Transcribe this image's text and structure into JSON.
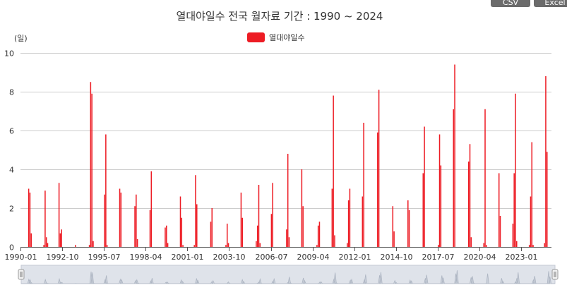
{
  "toolbar": {
    "csv_label": "CSV",
    "excel_label": "Excel"
  },
  "colors": {
    "series": "#ed1c24",
    "grid": "#cccccc",
    "axis": "#555555",
    "navigator_fill": "#dfe3ea"
  },
  "chart_data": {
    "type": "bar",
    "title": "열대야일수 전국 월자료 기간 : 1990 ~ 2024",
    "yunit": "(일)",
    "ylim": [
      0,
      10
    ],
    "yticks": [
      0,
      2,
      4,
      6,
      8,
      10
    ],
    "xlim": [
      "1990-01",
      "2024-12"
    ],
    "xticks": [
      "1990-01",
      "1992-10",
      "1995-07",
      "1998-04",
      "2001-01",
      "2003-10",
      "2006-07",
      "2009-04",
      "2012-01",
      "2014-10",
      "2017-07",
      "2020-04",
      "2023-01"
    ],
    "legend": {
      "position": "top-center",
      "entries": [
        "열대야일수"
      ]
    },
    "grid": true,
    "series": [
      {
        "name": "열대야일수",
        "points": [
          [
            "1990-07",
            3.0
          ],
          [
            "1990-08",
            2.8
          ],
          [
            "1990-09",
            0.7
          ],
          [
            "1991-07",
            0.1
          ],
          [
            "1991-08",
            2.9
          ],
          [
            "1991-09",
            0.5
          ],
          [
            "1991-10",
            0.2
          ],
          [
            "1992-07",
            3.3
          ],
          [
            "1992-08",
            0.7
          ],
          [
            "1992-09",
            0.9
          ],
          [
            "1993-08",
            0.1
          ],
          [
            "1994-07",
            0.1
          ],
          [
            "1994-08",
            8.5
          ],
          [
            "1994-09",
            7.9
          ],
          [
            "1994-10",
            0.3
          ],
          [
            "1995-07",
            2.7
          ],
          [
            "1995-08",
            5.8
          ],
          [
            "1995-09",
            0.1
          ],
          [
            "1996-07",
            3.0
          ],
          [
            "1996-08",
            2.8
          ],
          [
            "1997-07",
            2.1
          ],
          [
            "1997-08",
            2.7
          ],
          [
            "1997-09",
            0.4
          ],
          [
            "1998-07",
            1.9
          ],
          [
            "1998-08",
            3.9
          ],
          [
            "1999-07",
            1.0
          ],
          [
            "1999-08",
            1.1
          ],
          [
            "1999-09",
            0.2
          ],
          [
            "2000-07",
            2.6
          ],
          [
            "2000-08",
            1.5
          ],
          [
            "2000-09",
            0.1
          ],
          [
            "2001-06",
            0.1
          ],
          [
            "2001-07",
            3.7
          ],
          [
            "2001-08",
            2.2
          ],
          [
            "2002-07",
            1.3
          ],
          [
            "2002-08",
            2.0
          ],
          [
            "2003-07",
            0.1
          ],
          [
            "2003-08",
            1.2
          ],
          [
            "2003-09",
            0.2
          ],
          [
            "2004-07",
            2.8
          ],
          [
            "2004-08",
            1.5
          ],
          [
            "2005-07",
            0.3
          ],
          [
            "2005-08",
            1.1
          ],
          [
            "2005-09",
            3.2
          ],
          [
            "2005-10",
            0.2
          ],
          [
            "2006-07",
            1.7
          ],
          [
            "2006-08",
            3.3
          ],
          [
            "2007-07",
            0.9
          ],
          [
            "2007-08",
            4.8
          ],
          [
            "2007-09",
            0.5
          ],
          [
            "2008-07",
            4.0
          ],
          [
            "2008-08",
            2.1
          ],
          [
            "2009-07",
            0.1
          ],
          [
            "2009-08",
            1.1
          ],
          [
            "2009-09",
            1.3
          ],
          [
            "2010-07",
            3.0
          ],
          [
            "2010-08",
            7.8
          ],
          [
            "2010-09",
            0.6
          ],
          [
            "2011-07",
            0.2
          ],
          [
            "2011-08",
            2.4
          ],
          [
            "2011-09",
            3.0
          ],
          [
            "2012-07",
            2.6
          ],
          [
            "2012-08",
            6.4
          ],
          [
            "2013-07",
            5.9
          ],
          [
            "2013-08",
            8.1
          ],
          [
            "2014-07",
            2.1
          ],
          [
            "2014-08",
            0.8
          ],
          [
            "2015-07",
            2.4
          ],
          [
            "2015-08",
            1.9
          ],
          [
            "2016-07",
            3.8
          ],
          [
            "2016-08",
            6.2
          ],
          [
            "2017-07",
            0.1
          ],
          [
            "2017-08",
            5.8
          ],
          [
            "2017-09",
            4.2
          ],
          [
            "2018-07",
            7.1
          ],
          [
            "2018-08",
            9.4
          ],
          [
            "2019-07",
            4.4
          ],
          [
            "2019-08",
            5.3
          ],
          [
            "2019-09",
            0.5
          ],
          [
            "2020-07",
            0.2
          ],
          [
            "2020-08",
            7.1
          ],
          [
            "2020-09",
            0.1
          ],
          [
            "2021-07",
            3.8
          ],
          [
            "2021-08",
            1.6
          ],
          [
            "2022-06",
            1.2
          ],
          [
            "2022-07",
            3.8
          ],
          [
            "2022-08",
            7.9
          ],
          [
            "2022-09",
            0.3
          ],
          [
            "2023-07",
            0.1
          ],
          [
            "2023-08",
            2.6
          ],
          [
            "2023-09",
            5.4
          ],
          [
            "2023-10",
            0.1
          ],
          [
            "2024-07",
            0.2
          ],
          [
            "2024-08",
            8.8
          ],
          [
            "2024-09",
            4.9
          ]
        ]
      }
    ]
  }
}
